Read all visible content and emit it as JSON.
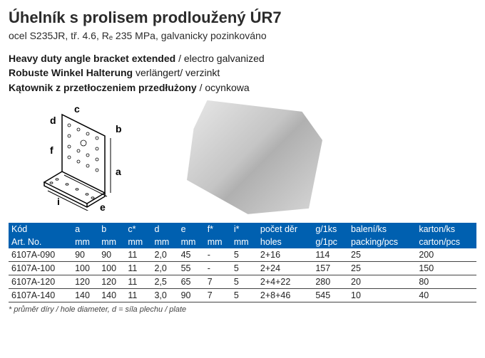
{
  "title": "Úhelník s prolisem prodloužený ÚR7",
  "subtitle": "ocel S235JR, tř. 4.6, Rₑ 235 MPa, galvanicky pozinkováno",
  "translations": {
    "en_bold": "Heavy duty angle bracket extended",
    "en_rest": " / electro galvanized",
    "de_bold": "Robuste Winkel Halterung",
    "de_rest": " verlängert/ verzinkt",
    "pl_bold": "Kątownik z przetłoczeniem przedłużony",
    "pl_rest": " / ocynkowa"
  },
  "diagram": {
    "labels": {
      "a": "a",
      "b": "b",
      "c": "c",
      "d": "d",
      "e": "e",
      "f": "f",
      "i": "i"
    }
  },
  "table": {
    "header_colors": {
      "bg": "#0060b0",
      "fg": "#ffffff"
    },
    "columns": [
      {
        "r1": "Kód",
        "r2": "Art. No."
      },
      {
        "r1": "a",
        "r2": "mm"
      },
      {
        "r1": "b",
        "r2": "mm"
      },
      {
        "r1": "c*",
        "r2": "mm"
      },
      {
        "r1": "d",
        "r2": "mm"
      },
      {
        "r1": "e",
        "r2": "mm"
      },
      {
        "r1": "f*",
        "r2": "mm"
      },
      {
        "r1": "i*",
        "r2": "mm"
      },
      {
        "r1": "počet děr",
        "r2": "holes"
      },
      {
        "r1": "g/1ks",
        "r2": "g/1pc"
      },
      {
        "r1": "balení/ks",
        "r2": "packing/pcs"
      },
      {
        "r1": "karton/ks",
        "r2": "carton/pcs"
      }
    ],
    "rows": [
      [
        "6107A-090",
        "90",
        "90",
        "11",
        "2,0",
        "45",
        "-",
        "5",
        "2+16",
        "114",
        "25",
        "200"
      ],
      [
        "6107A-100",
        "100",
        "100",
        "11",
        "2,0",
        "55",
        "-",
        "5",
        "2+24",
        "157",
        "25",
        "150"
      ],
      [
        "6107A-120",
        "120",
        "120",
        "11",
        "2,5",
        "65",
        "7",
        "5",
        "2+4+22",
        "280",
        "20",
        "80"
      ],
      [
        "6107A-140",
        "140",
        "140",
        "11",
        "3,0",
        "90",
        "7",
        "5",
        "2+8+46",
        "545",
        "10",
        "40"
      ]
    ]
  },
  "footnote": "* průměr díry / hole diameter, d = síla plechu / plate"
}
